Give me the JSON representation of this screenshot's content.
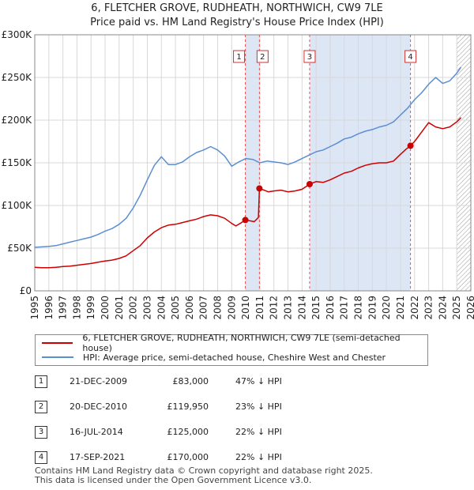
{
  "title_line1": "6, FLETCHER GROVE, RUDHEATH, NORTHWICH, CW9 7LE",
  "title_line2": "Price paid vs. HM Land Registry's House Price Index (HPI)",
  "colors": {
    "property": "#cc0000",
    "hpi": "#5b8fd0",
    "shade": "#dde6f5",
    "grid": "#d8d8d8",
    "vline": "#dd5555"
  },
  "chart_data": {
    "type": "line",
    "title": "Price paid vs. HM Land Registry's House Price Index (HPI)",
    "xlim": [
      1995,
      2026
    ],
    "ylim": [
      0,
      300000
    ],
    "yticks": [
      {
        "value": 0,
        "label": "£0"
      },
      {
        "value": 50000,
        "label": "£50K"
      },
      {
        "value": 100000,
        "label": "£100K"
      },
      {
        "value": 150000,
        "label": "£150K"
      },
      {
        "value": 200000,
        "label": "£200K"
      },
      {
        "value": 250000,
        "label": "£250K"
      },
      {
        "value": 300000,
        "label": "£300K"
      }
    ],
    "xticks": [
      "1995",
      "1996",
      "1997",
      "1998",
      "1999",
      "2000",
      "2001",
      "2002",
      "2003",
      "2004",
      "2005",
      "2006",
      "2007",
      "2008",
      "2009",
      "2010",
      "2011",
      "2012",
      "2013",
      "2014",
      "2015",
      "2016",
      "2017",
      "2018",
      "2019",
      "2020",
      "2021",
      "2022",
      "2023",
      "2024",
      "2025",
      "2026"
    ],
    "shaded_ranges": [
      [
        2009.97,
        2010.97
      ],
      [
        2014.54,
        2021.71
      ]
    ],
    "hatch_from": 2025.0,
    "series": [
      {
        "name": "6, FLETCHER GROVE, RUDHEATH, NORTHWICH, CW9 7LE (semi-detached house)",
        "x": [
          1995.0,
          1995.5,
          1996.0,
          1996.5,
          1997.0,
          1997.5,
          1998.0,
          1998.5,
          1999.0,
          1999.5,
          2000.0,
          2000.5,
          2001.0,
          2001.5,
          2002.0,
          2002.5,
          2003.0,
          2003.5,
          2004.0,
          2004.5,
          2005.0,
          2005.5,
          2006.0,
          2006.5,
          2007.0,
          2007.5,
          2008.0,
          2008.5,
          2009.0,
          2009.3,
          2009.6,
          2009.97,
          2010.3,
          2010.6,
          2010.9,
          2010.97,
          2011.3,
          2011.6,
          2012.0,
          2012.5,
          2013.0,
          2013.5,
          2014.0,
          2014.54,
          2015.0,
          2015.5,
          2016.0,
          2016.5,
          2017.0,
          2017.5,
          2018.0,
          2018.5,
          2019.0,
          2019.5,
          2020.0,
          2020.5,
          2021.0,
          2021.4,
          2021.71,
          2022.0,
          2022.5,
          2023.0,
          2023.5,
          2024.0,
          2024.5,
          2025.0,
          2025.3
        ],
        "values": [
          27500,
          27000,
          27000,
          27500,
          28500,
          29000,
          30000,
          31000,
          32000,
          33500,
          35000,
          36000,
          38000,
          41000,
          47000,
          53000,
          62000,
          69000,
          74000,
          77000,
          78000,
          80000,
          82000,
          84000,
          87000,
          89000,
          88000,
          85000,
          79000,
          76000,
          79000,
          83000,
          82000,
          81000,
          86000,
          119950,
          118000,
          116000,
          117000,
          118000,
          116000,
          117000,
          119000,
          125000,
          128000,
          127000,
          130000,
          134000,
          138000,
          140000,
          144000,
          147000,
          149000,
          150000,
          150000,
          152000,
          160000,
          166000,
          170000,
          175000,
          186000,
          197000,
          192000,
          190000,
          192000,
          198000,
          203000
        ]
      },
      {
        "name": "HPI: Average price, semi-detached house, Cheshire West and Chester",
        "x": [
          1995.0,
          1995.5,
          1996.0,
          1996.5,
          1997.0,
          1997.5,
          1998.0,
          1998.5,
          1999.0,
          1999.5,
          2000.0,
          2000.5,
          2001.0,
          2001.5,
          2002.0,
          2002.5,
          2003.0,
          2003.5,
          2004.0,
          2004.5,
          2005.0,
          2005.5,
          2006.0,
          2006.5,
          2007.0,
          2007.5,
          2008.0,
          2008.5,
          2009.0,
          2009.5,
          2010.0,
          2010.5,
          2011.0,
          2011.5,
          2012.0,
          2012.5,
          2013.0,
          2013.5,
          2014.0,
          2014.5,
          2015.0,
          2015.5,
          2016.0,
          2016.5,
          2017.0,
          2017.5,
          2018.0,
          2018.5,
          2019.0,
          2019.5,
          2020.0,
          2020.5,
          2021.0,
          2021.5,
          2022.0,
          2022.5,
          2023.0,
          2023.5,
          2024.0,
          2024.5,
          2025.0,
          2025.3
        ],
        "values": [
          51000,
          51500,
          52000,
          53000,
          55000,
          57000,
          59000,
          61000,
          63000,
          66000,
          70000,
          73000,
          78000,
          85000,
          97000,
          112000,
          130000,
          147000,
          157000,
          148000,
          148000,
          151000,
          157000,
          162000,
          165000,
          169000,
          165000,
          158000,
          146000,
          151000,
          155000,
          154000,
          150000,
          152000,
          151000,
          150000,
          148000,
          151000,
          155000,
          159000,
          163000,
          165000,
          169000,
          173000,
          178000,
          180000,
          184000,
          187000,
          189000,
          192000,
          194000,
          198000,
          206000,
          214000,
          224000,
          232000,
          242000,
          250000,
          243000,
          246000,
          255000,
          262000
        ]
      }
    ],
    "sales": [
      {
        "id": "1",
        "x": 2009.97,
        "value": 83000
      },
      {
        "id": "2",
        "x": 2010.97,
        "value": 119950
      },
      {
        "id": "3",
        "x": 2014.54,
        "value": 125000
      },
      {
        "id": "4",
        "x": 2021.71,
        "value": 170000
      }
    ]
  },
  "legend": {
    "property_label": "6, FLETCHER GROVE, RUDHEATH, NORTHWICH, CW9 7LE (semi-detached house)",
    "hpi_label": "HPI: Average price, semi-detached house, Cheshire West and Chester"
  },
  "sales_table": [
    {
      "num": "1",
      "date": "21-DEC-2009",
      "price": "£83,000",
      "hpi": "47% ↓ HPI"
    },
    {
      "num": "2",
      "date": "20-DEC-2010",
      "price": "£119,950",
      "hpi": "23% ↓ HPI"
    },
    {
      "num": "3",
      "date": "16-JUL-2014",
      "price": "£125,000",
      "hpi": "22% ↓ HPI"
    },
    {
      "num": "4",
      "date": "17-SEP-2021",
      "price": "£170,000",
      "hpi": "22% ↓ HPI"
    }
  ],
  "footer_line1": "Contains HM Land Registry data © Crown copyright and database right 2025.",
  "footer_line2": "This data is licensed under the Open Government Licence v3.0."
}
